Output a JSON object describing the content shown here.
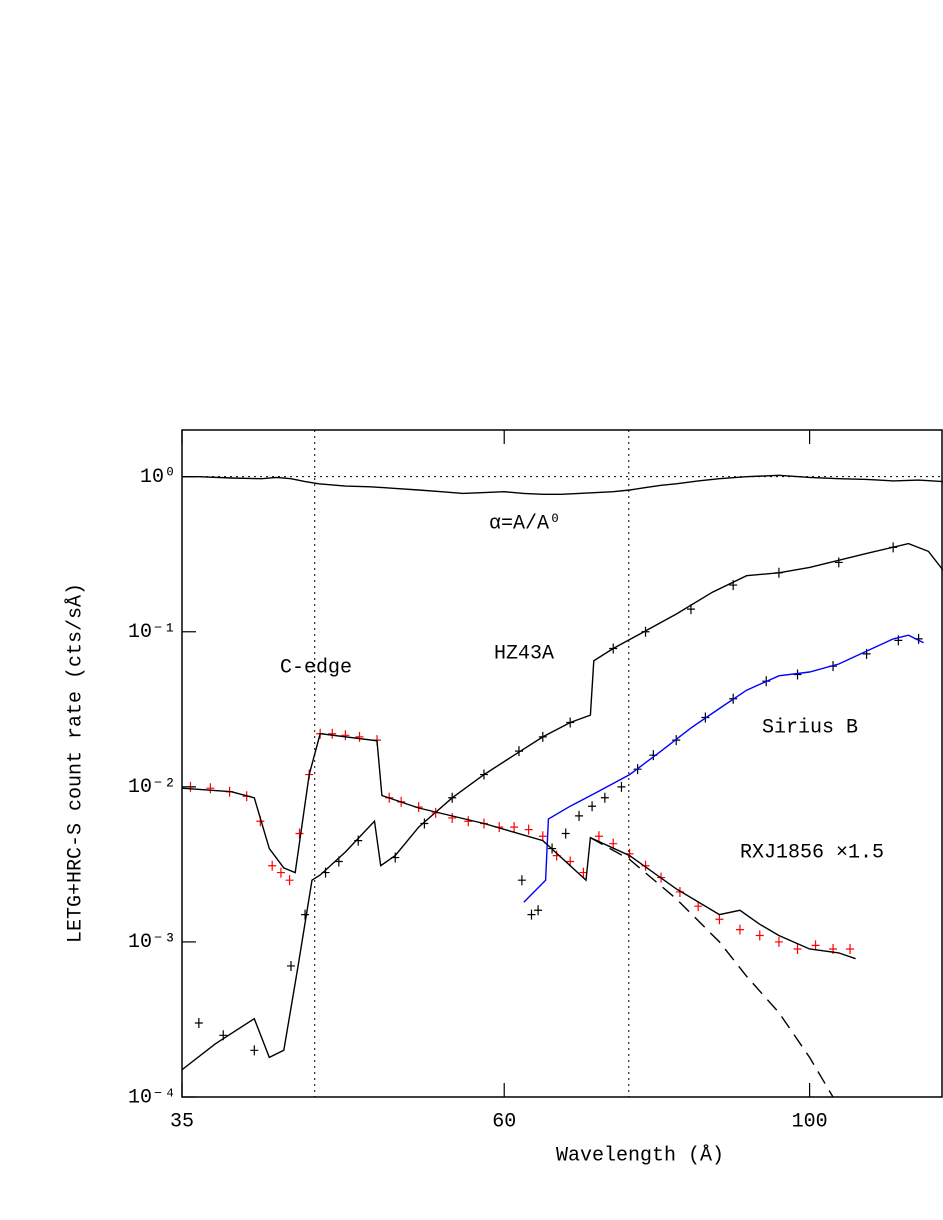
{
  "chart_data": {
    "type": "line",
    "ylabel": "LETG+HRC-S count rate (cts/sÅ)",
    "xlabel": "Wavelength (Å)",
    "xscale": "log",
    "yscale": "log",
    "xlim": [
      35,
      125
    ],
    "xticks": [
      35,
      60,
      100
    ],
    "ylim": [
      0.0001,
      2
    ],
    "yticks": [
      {
        "value": 0.0001,
        "label": "10⁻⁴"
      },
      {
        "value": 0.001,
        "label": "10⁻³"
      },
      {
        "value": 0.01,
        "label": "10⁻²"
      },
      {
        "value": 0.1,
        "label": "10⁻¹"
      },
      {
        "value": 1,
        "label": "10⁰"
      }
    ],
    "vlines": [
      43.7,
      73.9
    ],
    "hlines": [
      1
    ],
    "annotations": [
      "C-edge",
      "HZ43A",
      "Sirius B",
      "RXJ1856 ×1.5",
      "α=A/A⁰"
    ],
    "series": [
      {
        "style": "line",
        "color": "#000000",
        "x": [
          35,
          36,
          38,
          40,
          41,
          42,
          43,
          44,
          46,
          48,
          50,
          52,
          54,
          56,
          58,
          60,
          62,
          64,
          66,
          68,
          70,
          72,
          74,
          76,
          78,
          80,
          83,
          86,
          90,
          95,
          100,
          105,
          110,
          115,
          120,
          125
        ],
        "values": [
          1.0,
          1.0,
          0.98,
          0.97,
          0.99,
          0.97,
          0.93,
          0.9,
          0.87,
          0.86,
          0.84,
          0.82,
          0.8,
          0.78,
          0.79,
          0.8,
          0.78,
          0.77,
          0.77,
          0.78,
          0.79,
          0.8,
          0.82,
          0.85,
          0.88,
          0.9,
          0.94,
          0.97,
          1.0,
          1.02,
          0.99,
          0.97,
          0.96,
          0.94,
          0.95,
          0.93
        ]
      },
      {
        "style": "line",
        "color": "#000000",
        "x": [
          35,
          37,
          39.5,
          40.5,
          41.5,
          42.5,
          43.5,
          44.1,
          46,
          48.3,
          48.8,
          50,
          52,
          55,
          58,
          61,
          64,
          67,
          69.3,
          69.7,
          72,
          75,
          80,
          85,
          90,
          95,
          100,
          110,
          118,
          122,
          125
        ],
        "values": [
          0.00015,
          0.00022,
          0.00032,
          0.00018,
          0.0002,
          0.0007,
          0.0025,
          0.0027,
          0.0038,
          0.006,
          0.0031,
          0.0036,
          0.0055,
          0.0085,
          0.012,
          0.016,
          0.021,
          0.026,
          0.029,
          0.065,
          0.078,
          0.095,
          0.13,
          0.18,
          0.23,
          0.24,
          0.26,
          0.32,
          0.37,
          0.33,
          0.25
        ]
      },
      {
        "style": "points",
        "color": "#000000",
        "x": [
          36,
          37.5,
          39.5,
          42,
          43,
          44.5,
          45.5,
          47,
          50,
          52.5,
          55,
          58,
          61.5,
          64,
          67,
          72,
          76,
          82,
          88,
          95,
          105,
          115
        ],
        "values": [
          0.0003,
          0.00025,
          0.0002,
          0.0007,
          0.0015,
          0.0028,
          0.0033,
          0.0045,
          0.0035,
          0.0058,
          0.0085,
          0.012,
          0.017,
          0.021,
          0.026,
          0.078,
          0.1,
          0.14,
          0.2,
          0.24,
          0.28,
          0.35
        ]
      },
      {
        "style": "points",
        "color": "#000000",
        "x": [
          61.8,
          62.8,
          63.5,
          65,
          66.5,
          68,
          69.5,
          71,
          73,
          75,
          77,
          80,
          84,
          88,
          93,
          98,
          104,
          110,
          116,
          120
        ],
        "values": [
          0.0025,
          0.0015,
          0.0016,
          0.004,
          0.005,
          0.0065,
          0.0075,
          0.0085,
          0.01,
          0.013,
          0.016,
          0.02,
          0.028,
          0.037,
          0.048,
          0.053,
          0.06,
          0.072,
          0.088,
          0.09
        ]
      },
      {
        "style": "line",
        "color": "#0000ff",
        "x": [
          62,
          64.3,
          64.6,
          67,
          70,
          74,
          78,
          82,
          86,
          90,
          95,
          100,
          105,
          110,
          115,
          118,
          121
        ],
        "values": [
          0.0018,
          0.0025,
          0.0062,
          0.0075,
          0.0092,
          0.012,
          0.017,
          0.024,
          0.032,
          0.042,
          0.052,
          0.055,
          0.062,
          0.075,
          0.09,
          0.095,
          0.085
        ]
      },
      {
        "style": "points",
        "color": "#ff0000",
        "x": [
          35.5,
          36.7,
          37.9,
          39.0,
          39.9,
          40.7,
          41.3,
          41.9,
          42.6,
          43.3,
          44.1,
          45.0,
          46.0,
          47.1,
          48.5,
          49.5,
          50.5,
          52.0,
          53.5,
          55.0,
          56.5,
          58.0,
          59.5,
          61.0,
          62.5,
          64.0,
          65.5,
          67.0,
          68.5,
          70.3,
          72.0,
          74.0,
          76.0,
          78.0,
          80.5,
          83.0,
          86.0,
          89.0,
          92.0,
          95.0,
          98.0,
          101.0,
          104.0,
          107.0
        ],
        "values": [
          0.01,
          0.0098,
          0.0093,
          0.0087,
          0.006,
          0.0031,
          0.0028,
          0.0025,
          0.005,
          0.012,
          0.022,
          0.022,
          0.0215,
          0.021,
          0.02,
          0.0085,
          0.008,
          0.0074,
          0.0068,
          0.0063,
          0.006,
          0.0058,
          0.0055,
          0.0055,
          0.0053,
          0.0048,
          0.0036,
          0.0033,
          0.0028,
          0.0048,
          0.0043,
          0.0037,
          0.0031,
          0.0026,
          0.0021,
          0.0017,
          0.0014,
          0.0012,
          0.0011,
          0.001,
          0.0009,
          0.00095,
          0.0009,
          0.0009
        ]
      },
      {
        "style": "line",
        "color": "#000000",
        "x": [
          35,
          38,
          39.5,
          40.5,
          41.5,
          42.3,
          43.3,
          44.1,
          48.5,
          48.9,
          52,
          58,
          64,
          68.8,
          69.3,
          74,
          80,
          86,
          89,
          92,
          95,
          100,
          105,
          108
        ],
        "values": [
          0.0098,
          0.0093,
          0.0085,
          0.004,
          0.003,
          0.0028,
          0.012,
          0.022,
          0.0198,
          0.0088,
          0.0073,
          0.0058,
          0.0045,
          0.0025,
          0.0047,
          0.0036,
          0.0022,
          0.0015,
          0.0016,
          0.0013,
          0.0011,
          0.0009,
          0.00085,
          0.00078
        ]
      },
      {
        "style": "dashed",
        "color": "#000000",
        "x": [
          69.3,
          74,
          80,
          86,
          90,
          95,
          100,
          104
        ],
        "values": [
          0.0047,
          0.0034,
          0.0019,
          0.001,
          0.0006,
          0.00035,
          0.00018,
          0.0001
        ]
      }
    ]
  }
}
